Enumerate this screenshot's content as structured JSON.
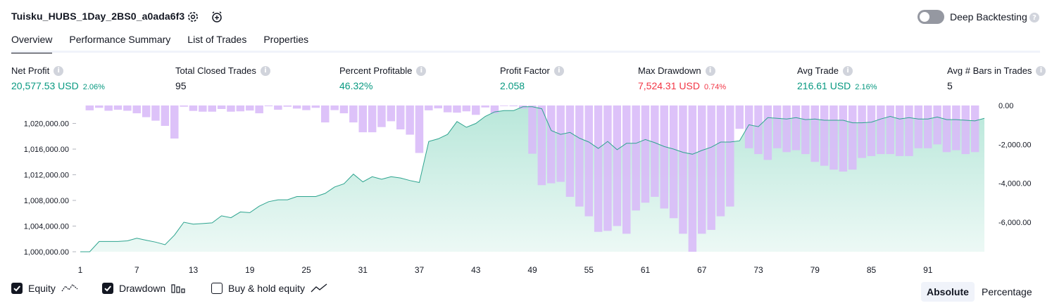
{
  "header": {
    "strategy_title": "Tuisku_HUBS_1Day_2BS0_a0ada6f3",
    "deep_backtesting_label": "Deep Backtesting",
    "deep_backtesting_enabled": false,
    "settings_icon": "gear-icon",
    "alert_icon": "alarm-plus-icon"
  },
  "tabs": [
    {
      "label": "Overview",
      "active": true
    },
    {
      "label": "Performance Summary",
      "active": false
    },
    {
      "label": "List of Trades",
      "active": false
    },
    {
      "label": "Properties",
      "active": false
    }
  ],
  "metrics": [
    {
      "label": "Net Profit",
      "value": "20,577.53 USD",
      "pct": "2.06%",
      "tone": "green"
    },
    {
      "label": "Total Closed Trades",
      "value": "95",
      "pct": "",
      "tone": "neutral"
    },
    {
      "label": "Percent Profitable",
      "value": "46.32%",
      "pct": "",
      "tone": "green"
    },
    {
      "label": "Profit Factor",
      "value": "2.058",
      "pct": "",
      "tone": "green"
    },
    {
      "label": "Max Drawdown",
      "value": "7,524.31 USD",
      "pct": "0.74%",
      "tone": "red"
    },
    {
      "label": "Avg Trade",
      "value": "216.61 USD",
      "pct": "2.16%",
      "tone": "green"
    },
    {
      "label": "Avg # Bars in Trades",
      "value": "5",
      "pct": "",
      "tone": "neutral"
    }
  ],
  "chart_data": {
    "type": "line",
    "x_ticks": [
      "1",
      "7",
      "13",
      "19",
      "25",
      "31",
      "37",
      "43",
      "49",
      "55",
      "61",
      "67",
      "73",
      "79",
      "85",
      "91"
    ],
    "y_left_ticks": [
      "1,000,000.00",
      "1,004,000.00",
      "1,008,000.00",
      "1,012,000.00",
      "1,016,000.00",
      "1,020,000.00"
    ],
    "y_right_ticks": [
      "0.00",
      "-2,000.00",
      "-4,000.00",
      "-6,000.00"
    ],
    "y_left_range": [
      1000000,
      1022800
    ],
    "y_right_range": [
      -7524.31,
      0
    ],
    "trades": 95,
    "colors": {
      "equity_line": "#2ea48f",
      "equity_fill": "#b5e6d8",
      "drawdown": "#d8b9f8",
      "axis_text": "#131722"
    },
    "series": [
      {
        "name": "Equity",
        "values": [
          1000000,
          1000000,
          1001600,
          1001600,
          1001600,
          1001700,
          1002100,
          1001800,
          1001500,
          1001100,
          1002600,
          1004600,
          1004300,
          1004400,
          1004500,
          1005600,
          1005300,
          1006200,
          1006100,
          1007100,
          1007800,
          1008100,
          1008100,
          1008600,
          1008600,
          1008600,
          1009100,
          1010100,
          1010600,
          1012100,
          1010900,
          1011700,
          1011300,
          1011700,
          1011500,
          1011100,
          1010800,
          1017200,
          1017600,
          1018300,
          1020300,
          1019400,
          1020000,
          1021100,
          1021800,
          1022000,
          1022000,
          1022600,
          1022600,
          1022300,
          1018900,
          1018300,
          1018600,
          1017700,
          1017100,
          1016100,
          1017200,
          1015900,
          1016900,
          1016900,
          1017500,
          1017000,
          1016400,
          1016000,
          1015500,
          1015200,
          1015800,
          1016300,
          1017100,
          1017100,
          1017300,
          1019800,
          1019500,
          1020900,
          1020800,
          1020700,
          1020900,
          1020600,
          1020700,
          1020500,
          1020500,
          1020500,
          1020100,
          1020100,
          1020200,
          1020700,
          1021100,
          1020700,
          1020900,
          1020700,
          1020700,
          1021000,
          1020600,
          1020600,
          1020500,
          1020400,
          1020800
        ]
      },
      {
        "name": "Drawdown",
        "values": [
          0,
          -250,
          -120,
          -270,
          -220,
          -270,
          -400,
          -600,
          -780,
          -1050,
          -1700,
          -60,
          -280,
          -320,
          -320,
          -180,
          -320,
          -300,
          -260,
          -400,
          -40,
          -220,
          -60,
          -160,
          -240,
          -120,
          -870,
          -240,
          -400,
          -870,
          -1380,
          -1380,
          -1110,
          -810,
          -1230,
          -1500,
          -2440,
          -250,
          -150,
          -350,
          -370,
          -300,
          -480,
          -100,
          -400,
          -30,
          -40,
          -160,
          -2480,
          -4100,
          -4000,
          -3930,
          -4700,
          -5200,
          -5700,
          -6500,
          -6450,
          -6200,
          -6600,
          -5400,
          -5000,
          -4700,
          -5300,
          -5800,
          -6600,
          -7524,
          -6600,
          -6400,
          -5700,
          -5200,
          -1200,
          -2200,
          -2500,
          -2800,
          -2200,
          -2400,
          -2300,
          -2500,
          -2900,
          -3100,
          -3300,
          -3400,
          -3300,
          -2700,
          -2600,
          -2500,
          -2500,
          -2600,
          -2600,
          -2200,
          -2200,
          -2000,
          -2400,
          -2300,
          -2500,
          -2400
        ]
      }
    ]
  },
  "legend": {
    "equity_label": "Equity",
    "equity_checked": true,
    "drawdown_label": "Drawdown",
    "drawdown_checked": true,
    "buyhold_label": "Buy & hold equity",
    "buyhold_checked": false
  },
  "view_mode": {
    "absolute_label": "Absolute",
    "percentage_label": "Percentage",
    "selected": "Absolute"
  }
}
